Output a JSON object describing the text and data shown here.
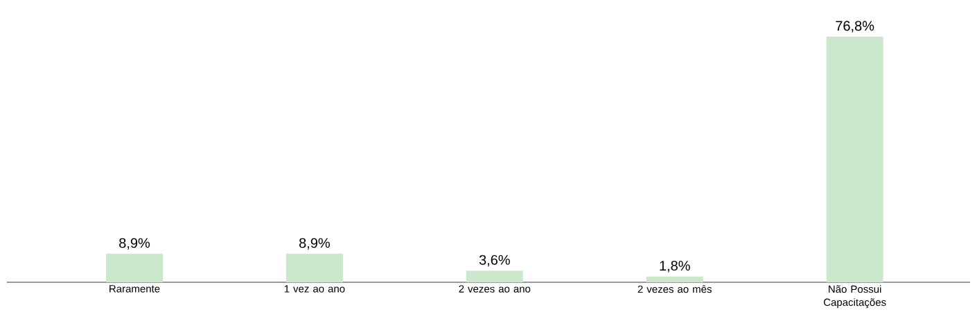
{
  "chart_data": {
    "type": "bar",
    "categories": [
      "Raramente",
      "1 vez ao ano",
      "2 vezes ao ano",
      "2 vezes ao mês",
      "Não Possui Capacitações"
    ],
    "values": [
      8.9,
      8.9,
      3.6,
      1.8,
      76.8
    ],
    "value_labels": [
      "8,9%",
      "8,9%",
      "3,6%",
      "1,8%",
      "76,8%"
    ],
    "color": "#cce8cc"
  }
}
